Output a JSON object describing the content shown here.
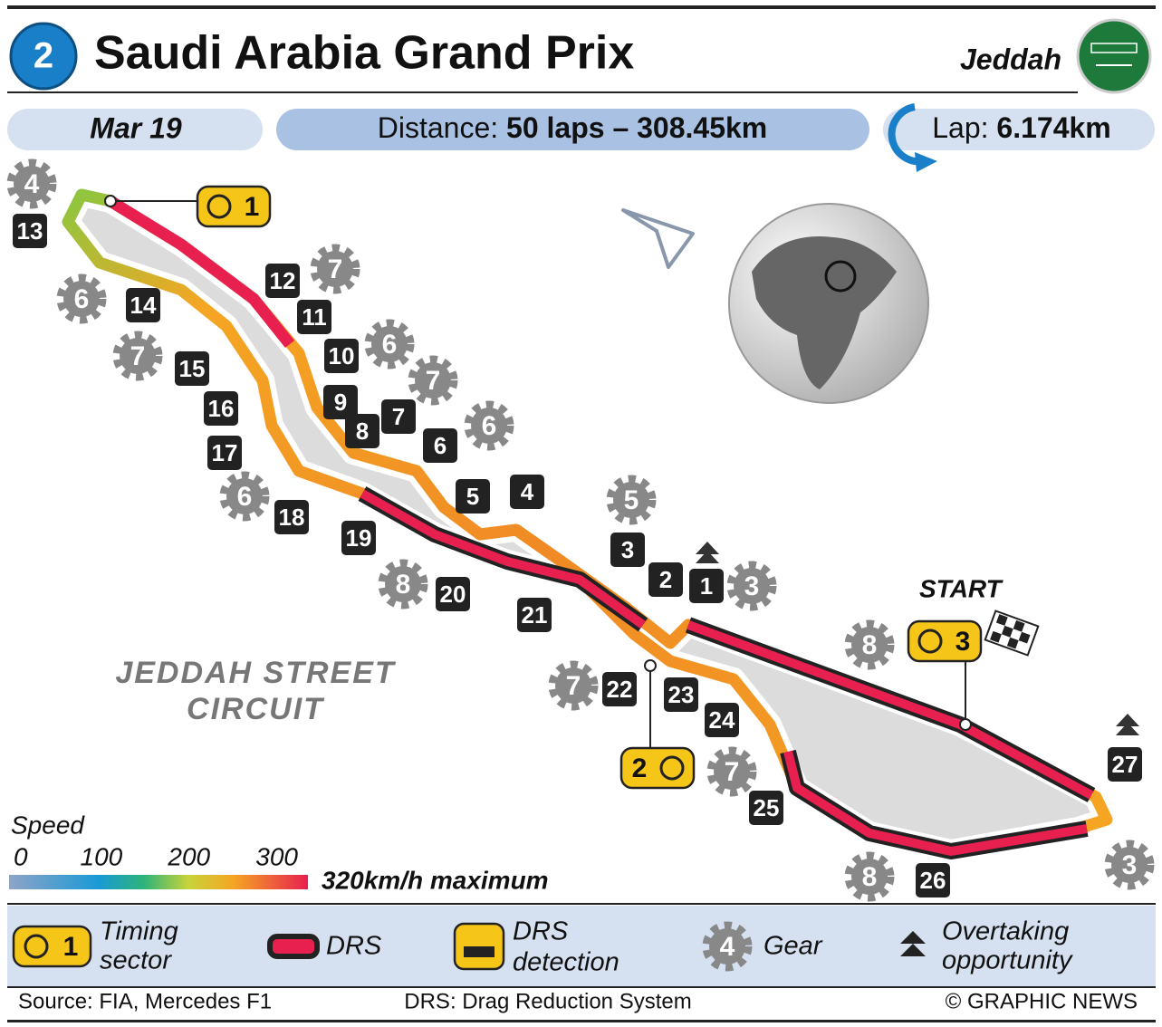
{
  "header": {
    "round": "2",
    "title": "Saudi Arabia Grand Prix",
    "city": "Jeddah"
  },
  "info": {
    "date": "Mar 19",
    "distance_label": "Distance:",
    "distance": "50 laps – 308.45km",
    "lap_label": "Lap:",
    "lap": "6.174km"
  },
  "circuit": {
    "name_lines": [
      "JEDDAH STREET",
      "CIRCUIT"
    ],
    "start": "START",
    "turns": [
      "1",
      "2",
      "3",
      "4",
      "5",
      "6",
      "7",
      "8",
      "9",
      "10",
      "11",
      "12",
      "13",
      "14",
      "15",
      "16",
      "17",
      "18",
      "19",
      "20",
      "21",
      "22",
      "23",
      "24",
      "25",
      "26",
      "27"
    ],
    "gears": [
      "4",
      "6",
      "7",
      "7",
      "6",
      "7",
      "6",
      "6",
      "8",
      "5",
      "3",
      "8",
      "7",
      "7",
      "8",
      "3"
    ],
    "timing_sectors": [
      "1",
      "2",
      "3"
    ]
  },
  "speed_scale": {
    "title": "Speed",
    "ticks": [
      0,
      100,
      200,
      300
    ],
    "maximum": "320km/h maximum"
  },
  "legend": {
    "timing_sample": "1",
    "timing_lines": [
      "Timing",
      "sector"
    ],
    "drs": "DRS",
    "drs_detection_lines": [
      "DRS",
      "detection"
    ],
    "gear_sample": "4",
    "gear": "Gear",
    "overtaking_lines": [
      "Overtaking",
      "opportunity"
    ]
  },
  "footer": {
    "source": "Source: FIA, Mercedes F1",
    "note": "DRS: Drag Reduction System",
    "credit": "© GRAPHIC NEWS"
  }
}
